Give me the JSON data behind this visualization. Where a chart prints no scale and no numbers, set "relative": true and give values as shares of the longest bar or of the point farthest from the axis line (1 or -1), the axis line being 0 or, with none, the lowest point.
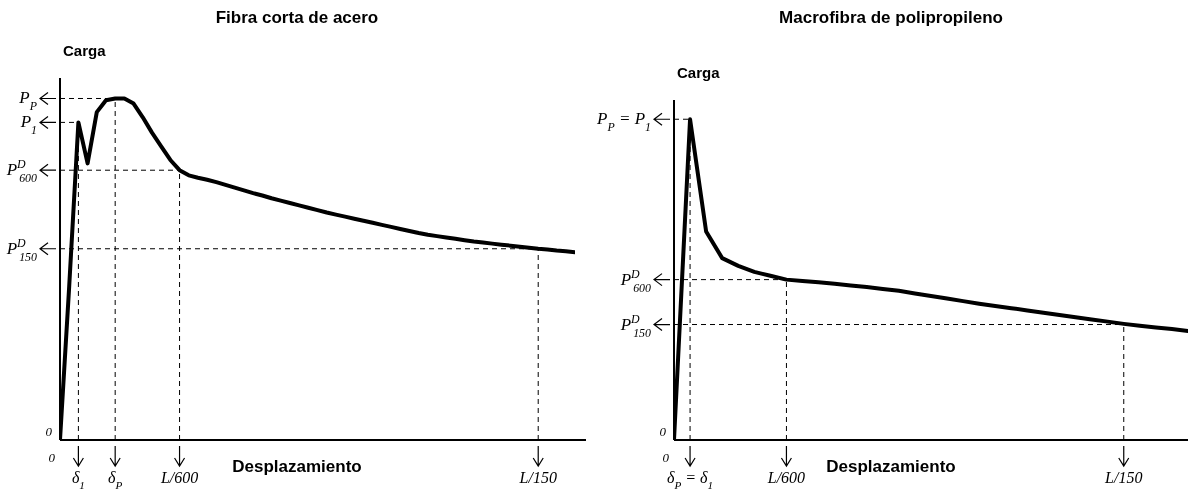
{
  "chart_data": [
    {
      "type": "line",
      "title": "Fibra corta de acero",
      "xlabel": "Desplazamiento",
      "ylabel": "Carga",
      "relative": true,
      "categories": [
        null,
        null,
        "δ$_{1}$",
        null,
        null,
        null,
        "δ$_{P}$",
        null,
        null,
        null,
        null,
        null,
        null,
        "L/600",
        null,
        null,
        null,
        null,
        null,
        null,
        null,
        null,
        null,
        null,
        null,
        null,
        null,
        null,
        null,
        null,
        null,
        null,
        null,
        null,
        null,
        null,
        null,
        null,
        null,
        null,
        null,
        null,
        null,
        null,
        null,
        null,
        null,
        null,
        null,
        null,
        null,
        null,
        "L/150",
        null,
        null,
        null,
        null
      ],
      "series": [
        {
          "color": "#000000",
          "values": [
            0,
            0.45,
            0.93,
            0.81,
            0.96,
            0.995,
            1,
            1,
            0.985,
            0.945,
            0.9,
            0.86,
            0.82,
            0.79,
            0.775,
            0.768,
            0.762,
            0.755,
            0.747,
            0.739,
            0.731,
            0.723,
            0.716,
            0.708,
            0.701,
            0.694,
            0.687,
            0.68,
            0.673,
            0.666,
            0.66,
            0.654,
            0.648,
            0.642,
            0.636,
            0.63,
            0.624,
            0.618,
            0.612,
            0.606,
            0.601,
            0.597,
            0.593,
            0.589,
            0.585,
            0.581,
            0.578,
            0.575,
            0.572,
            0.569,
            0.566,
            0.563,
            0.56,
            0.558,
            0.555,
            0.553,
            0.55
          ]
        }
      ],
      "annotations": [
        "0",
        "0"
      ],
      "ref_lines": [
        {
          "axis": "y",
          "value": 0.93,
          "label": "P$_{1}$",
          "line_style": "dashed",
          "color": "#000000"
        },
        {
          "axis": "y",
          "value": 1,
          "label": "P$_{P}$",
          "line_style": "dashed",
          "color": "#000000"
        },
        {
          "axis": "y",
          "value": 0.79,
          "label": "P$^{D}$$_{600}$",
          "line_style": "dashed",
          "color": "#000000"
        },
        {
          "axis": "y",
          "value": 0.56,
          "label": "P$^{D}$$_{150}$",
          "line_style": "dashed",
          "color": "#000000"
        },
        {
          "axis": "x",
          "value": "δ$_{1}$",
          "line_style": "dashed",
          "color": "#000000"
        },
        {
          "axis": "x",
          "value": "δ$_{P}$",
          "line_style": "dashed",
          "color": "#000000"
        },
        {
          "axis": "x",
          "value": "L/600",
          "line_style": "dashed",
          "color": "#000000"
        },
        {
          "axis": "x",
          "value": "L/150",
          "line_style": "dashed",
          "color": "#000000"
        }
      ]
    },
    {
      "type": "line",
      "title": "Macrofibra de polipropileno",
      "xlabel": "Desplazamiento",
      "ylabel": "Carga",
      "relative": true,
      "categories": [
        null,
        "δ$_{P}$ = δ$_{1}$",
        null,
        null,
        null,
        null,
        null,
        "L/600",
        null,
        null,
        null,
        null,
        null,
        null,
        null,
        null,
        null,
        null,
        null,
        null,
        null,
        null,
        null,
        null,
        null,
        null,
        null,
        null,
        "L/150",
        null,
        null,
        null,
        null
      ],
      "series": [
        {
          "color": "#000000",
          "values": [
            0,
            1,
            0.65,
            0.567,
            0.543,
            0.524,
            0.512,
            0.5,
            0.496,
            0.492,
            0.487,
            0.482,
            0.477,
            0.471,
            0.465,
            0.457,
            0.449,
            0.441,
            0.433,
            0.425,
            0.418,
            0.411,
            0.404,
            0.397,
            0.39,
            0.383,
            0.376,
            0.369,
            0.362,
            0.356,
            0.351,
            0.346,
            0.34
          ]
        }
      ],
      "annotations": [
        "0",
        "0"
      ],
      "ref_lines": [
        {
          "axis": "y",
          "value": 1,
          "label": "P$_{P}$ = P$_{1}$",
          "line_style": "dashed",
          "color": "#000000"
        },
        {
          "axis": "y",
          "value": 0.5,
          "label": "P$^{D}$$_{600}$",
          "line_style": "dashed",
          "color": "#000000"
        },
        {
          "axis": "y",
          "value": 0.36,
          "label": "P$^{D}$$_{150}$",
          "line_style": "dashed",
          "color": "#000000"
        },
        {
          "axis": "x",
          "value": "δ$_{P}$ = δ$_{1}$",
          "line_style": "dashed",
          "color": "#000000"
        },
        {
          "axis": "x",
          "value": "L/600",
          "line_style": "dashed",
          "color": "#000000"
        },
        {
          "axis": "x",
          "value": "L/150",
          "line_style": "dashed",
          "color": "#000000"
        }
      ]
    }
  ]
}
